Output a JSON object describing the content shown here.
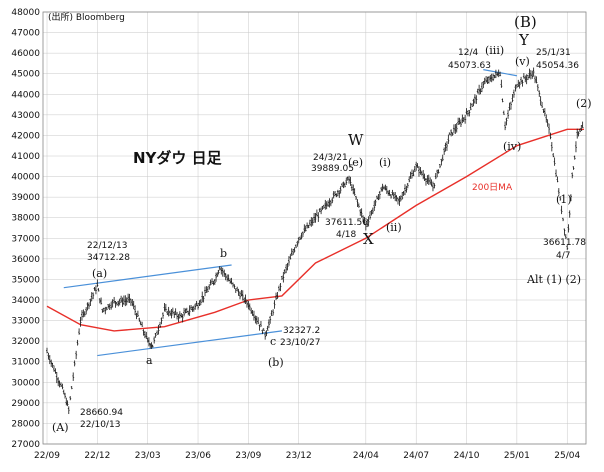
{
  "source_label": "(出所) Bloomberg",
  "chart_data": {
    "type": "ohlc",
    "title": "NYダウ 日足",
    "colors": {
      "price": "#111111",
      "ma200": "#e8302a",
      "trend": "#4a90d9",
      "grid": "#c8c8c8"
    },
    "ylim": [
      27000,
      48000
    ],
    "y_ticks": [
      "27000",
      "28000",
      "29000",
      "30000",
      "31000",
      "32000",
      "33000",
      "34000",
      "35000",
      "36000",
      "37000",
      "38000",
      "39000",
      "40000",
      "41000",
      "42000",
      "43000",
      "44000",
      "45000",
      "46000",
      "47000",
      "48000"
    ],
    "x_ticks": [
      "22/09",
      "22/12",
      "23/03",
      "23/06",
      "23/09",
      "23/12",
      "24/04",
      "24/07",
      "24/10",
      "25/01",
      "25/04"
    ],
    "grid": true,
    "series": [
      {
        "name": "NYダウ",
        "x": [
          "22/09",
          "22/10",
          "22/10",
          "22/11",
          "22/12",
          "22/12",
          "23/01",
          "23/02",
          "23/03",
          "23/03",
          "23/04",
          "23/05",
          "23/06",
          "23/07",
          "23/07",
          "23/08",
          "23/09",
          "23/10",
          "23/10",
          "23/11",
          "23/12",
          "24/01",
          "24/03",
          "24/04",
          "24/05",
          "24/06",
          "24/07",
          "24/08",
          "24/09",
          "24/10",
          "24/11",
          "24/12",
          "24/12",
          "25/01",
          "25/02",
          "25/03",
          "25/04",
          "25/04",
          "25/04",
          "25/05"
        ],
        "values": [
          31500,
          29500,
          28660.94,
          33000,
          34712.28,
          33500,
          33900,
          34000,
          32000,
          31800,
          33500,
          33200,
          33800,
          35000,
          35600,
          34800,
          33800,
          32327.2,
          33000,
          35000,
          37000,
          38000,
          39889.05,
          37611.56,
          39500,
          38800,
          40500,
          39500,
          42000,
          43000,
          44500,
          45073.63,
          42500,
          44500,
          45054.36,
          42000,
          36611.78,
          40000,
          42000,
          42400
        ]
      },
      {
        "name": "200日MA",
        "x": [
          "22/09",
          "22/11",
          "23/01",
          "23/04",
          "23/07",
          "23/09",
          "23/11",
          "24/01",
          "24/04",
          "24/07",
          "24/10",
          "25/01",
          "25/04",
          "25/05"
        ],
        "values": [
          33700,
          32800,
          32500,
          32700,
          33400,
          34000,
          34200,
          35800,
          37000,
          38600,
          40000,
          41500,
          42300,
          42300
        ]
      }
    ],
    "trendlines": [
      {
        "x": [
          "22/10",
          "23/08"
        ],
        "values": [
          34600,
          35700
        ]
      },
      {
        "x": [
          "22/12",
          "23/11"
        ],
        "values": [
          31300,
          32500
        ]
      },
      {
        "x": [
          "24/11",
          "25/01"
        ],
        "values": [
          45200,
          44900
        ]
      }
    ],
    "annotations": {
      "A": "(A)",
      "a_paren": "(a)",
      "b": "b",
      "a": "a",
      "c": "c",
      "b_paren": "(b)",
      "W": "W",
      "e_paren": "(e)",
      "X": "X",
      "i_paren": "(i)",
      "ii_paren": "(ii)",
      "iii_paren": "(iii)",
      "B": "(B)",
      "Y": "Y",
      "v_paren": "(v)",
      "iv_paren": "(iv)",
      "one_paren": "(1)",
      "two_paren": "(2)",
      "alt": "Alt (1) (2)",
      "low_2210_value": "28660.94",
      "low_2210_date": "22/10/13",
      "high_2212_date": "22/12/13",
      "high_2212_value": "34712.28",
      "low_2310_value": "32327.2",
      "low_2310_date": "23/10/27",
      "high_2403_date": "24/3/21",
      "high_2403_value": "39889.05",
      "low_2404_value": "37611.56",
      "low_2404_date": "4/18",
      "high_2412_date": "12/4",
      "high_2412_value": "45073.63",
      "high_2501_date": "25/1/31",
      "high_2501_value": "45054.36",
      "low_2504_value": "36611.78",
      "low_2504_date": "4/7",
      "ma_label": "200日MA"
    }
  }
}
